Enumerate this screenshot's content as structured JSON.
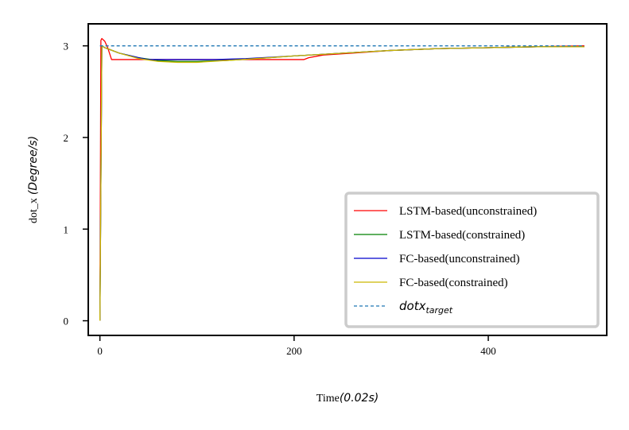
{
  "chart_data": {
    "type": "line",
    "xlabel": "Time",
    "xlabel_unit": "(0.02s)",
    "ylabel": "dot_x",
    "ylabel_unit": "(Degree/s)",
    "xlim": [
      -12,
      522
    ],
    "ylim": [
      -0.16,
      3.24
    ],
    "xticks": [
      0,
      200,
      400
    ],
    "yticks": [
      0,
      1,
      2,
      3
    ],
    "xtick_labels": [
      "0",
      "200",
      "400"
    ],
    "ytick_labels": [
      "0",
      "1",
      "2",
      "3"
    ],
    "grid": false,
    "legend_position": "lower-right",
    "series": [
      {
        "name": "LSTM-based(unconstrained)",
        "color": "#ff0000",
        "style": "solid",
        "x": [
          0,
          1,
          2,
          5,
          8,
          12,
          20,
          50,
          100,
          150,
          200,
          210,
          215,
          230,
          260,
          300,
          350,
          400,
          450,
          499
        ],
        "y": [
          0,
          3.06,
          3.08,
          3.05,
          2.98,
          2.85,
          2.85,
          2.85,
          2.85,
          2.85,
          2.85,
          2.85,
          2.87,
          2.9,
          2.92,
          2.95,
          2.97,
          2.98,
          2.99,
          3.0
        ]
      },
      {
        "name": "LSTM-based(constrained)",
        "color": "#008000",
        "style": "solid",
        "x": [
          0,
          2,
          5,
          10,
          20,
          40,
          60,
          80,
          100,
          130,
          160,
          200,
          250,
          300,
          350,
          400,
          450,
          499
        ],
        "y": [
          0,
          3.0,
          2.98,
          2.96,
          2.92,
          2.87,
          2.84,
          2.83,
          2.83,
          2.84,
          2.86,
          2.89,
          2.92,
          2.95,
          2.97,
          2.98,
          2.99,
          2.99
        ]
      },
      {
        "name": "FC-based(unconstrained)",
        "color": "#0000cc",
        "style": "solid",
        "x": [
          0,
          2,
          5,
          10,
          20,
          40,
          50,
          60,
          100,
          120,
          150,
          200,
          250,
          300,
          350,
          400,
          450,
          499
        ],
        "y": [
          0,
          3.0,
          2.98,
          2.96,
          2.92,
          2.87,
          2.85,
          2.85,
          2.85,
          2.85,
          2.86,
          2.89,
          2.92,
          2.95,
          2.97,
          2.98,
          2.99,
          2.99
        ]
      },
      {
        "name": "FC-based(constrained)",
        "color": "#ccb800",
        "style": "solid",
        "x": [
          0,
          2,
          5,
          10,
          20,
          40,
          60,
          80,
          100,
          130,
          160,
          200,
          250,
          300,
          350,
          400,
          450,
          499
        ],
        "y": [
          0,
          3.0,
          2.98,
          2.96,
          2.92,
          2.86,
          2.83,
          2.82,
          2.82,
          2.84,
          2.86,
          2.89,
          2.92,
          2.95,
          2.97,
          2.98,
          2.99,
          2.99
        ]
      },
      {
        "name": "dotx_target",
        "color": "#1f77b4",
        "style": "dashed",
        "x": [
          0,
          499
        ],
        "y": [
          3.0,
          3.0
        ]
      }
    ],
    "legend": [
      {
        "label": "LSTM-based(unconstrained)",
        "color": "#ff0000",
        "style": "solid",
        "math": false
      },
      {
        "label": "LSTM-based(constrained)",
        "color": "#008000",
        "style": "solid",
        "math": false
      },
      {
        "label": "FC-based(unconstrained)",
        "color": "#0000cc",
        "style": "solid",
        "math": false
      },
      {
        "label": "FC-based(constrained)",
        "color": "#ccb800",
        "style": "solid",
        "math": false
      },
      {
        "label_base": "dotx",
        "label_sub": "target",
        "color": "#1f77b4",
        "style": "dashed",
        "math": true
      }
    ]
  }
}
